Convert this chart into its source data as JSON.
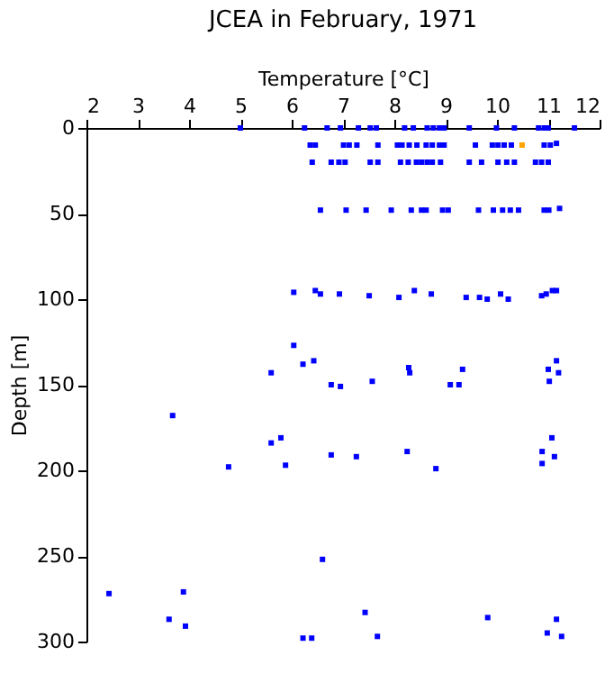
{
  "chart_data": {
    "type": "scatter",
    "title": "JCEA in February, 1971",
    "xlabel": "Temperature [°C]",
    "ylabel": "Depth [m]",
    "xlim": [
      2,
      12
    ],
    "xticks": [
      2,
      3,
      4,
      5,
      6,
      7,
      8,
      9,
      10,
      11,
      12
    ],
    "ylim": [
      300,
      0
    ],
    "yticks": [
      0,
      50,
      100,
      150,
      200,
      250,
      300
    ],
    "grid": false,
    "legend": false,
    "marker": "square",
    "series": [
      {
        "color": "#0000ff",
        "x": [
          5.0,
          6.25,
          6.69,
          6.95,
          7.3,
          7.53,
          7.65,
          8.2,
          8.37,
          8.64,
          8.76,
          8.88,
          8.97,
          9.46,
          9.99,
          10.34,
          10.81,
          10.92,
          11.0,
          11.51,
          6.36,
          6.46,
          7.01,
          7.12,
          7.27,
          7.68,
          8.06,
          8.15,
          8.29,
          8.44,
          8.62,
          8.74,
          8.88,
          8.97,
          9.58,
          9.91,
          10.02,
          10.14,
          10.28,
          10.92,
          11.04,
          11.16,
          6.4,
          6.77,
          6.92,
          7.04,
          7.53,
          7.68,
          8.12,
          8.27,
          8.43,
          8.53,
          8.64,
          8.74,
          8.9,
          9.46,
          9.7,
          10.02,
          10.19,
          10.34,
          10.75,
          10.87,
          11.0,
          6.56,
          7.06,
          7.45,
          7.94,
          8.33,
          8.53,
          8.62,
          8.94,
          9.05,
          9.64,
          9.93,
          10.11,
          10.26,
          10.42,
          10.92,
          11.01,
          11.22,
          6.04,
          6.46,
          6.56,
          6.93,
          7.51,
          8.09,
          8.39,
          8.72,
          9.4,
          9.66,
          9.81,
          10.07,
          10.22,
          10.87,
          10.96,
          11.08,
          11.16,
          6.04,
          6.43,
          11.16,
          5.6,
          6.22,
          6.77,
          6.95,
          7.57,
          8.28,
          8.3,
          9.09,
          9.26,
          9.33,
          11.0,
          11.2,
          11.02,
          3.68,
          4.77,
          5.6,
          5.79,
          5.88,
          6.77,
          7.26,
          8.25,
          8.81,
          10.88,
          11.07,
          11.12,
          10.88,
          2.44,
          3.61,
          3.89,
          3.93,
          6.22,
          6.39,
          6.6,
          7.43,
          7.67,
          9.82,
          10.98,
          11.16,
          11.26
        ],
        "values": [
          0,
          0,
          0,
          0,
          0,
          0,
          0,
          0,
          0,
          0,
          0,
          0,
          0,
          0,
          0,
          0,
          0,
          0,
          0,
          0,
          10,
          10,
          10,
          10,
          10,
          10,
          10,
          10,
          10,
          10,
          10,
          10,
          10,
          10,
          10,
          10,
          10,
          10,
          10,
          10,
          10,
          9,
          20,
          20,
          20,
          20,
          20,
          20,
          20,
          20,
          20,
          20,
          20,
          20,
          20,
          20,
          20,
          20,
          20,
          20,
          20,
          20,
          20,
          48,
          48,
          48,
          48,
          48,
          48,
          48,
          48,
          48,
          48,
          48,
          48,
          48,
          48,
          48,
          48,
          47,
          96,
          95,
          97,
          97,
          98,
          99,
          95,
          97,
          99,
          99,
          100,
          97,
          100,
          98,
          97,
          95,
          95,
          127,
          136,
          136,
          143,
          138,
          150,
          151,
          148,
          140,
          143,
          150,
          150,
          141,
          141,
          143,
          148,
          168,
          198,
          184,
          181,
          197,
          191,
          192,
          189,
          199,
          189,
          181,
          192,
          196,
          272,
          287,
          271,
          291,
          298,
          298,
          252,
          283,
          297,
          286,
          295,
          287,
          297
        ]
      },
      {
        "color": "#ffa500",
        "x": [
          10.49
        ],
        "values": [
          10
        ]
      }
    ]
  }
}
